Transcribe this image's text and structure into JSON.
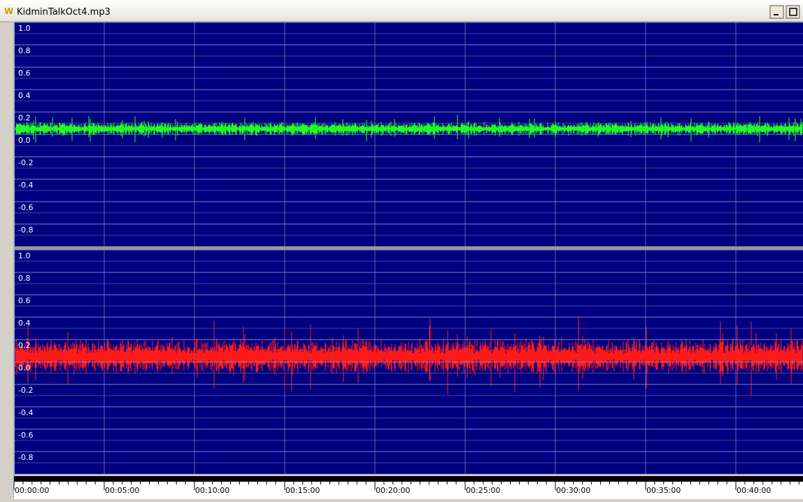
{
  "window": {
    "title": "KidminTalkOct4.mp3"
  },
  "channels": [
    {
      "color": "#22ff22",
      "ylim": [
        -1,
        1
      ],
      "yticks": [
        {
          "value": 1,
          "label": "1.0"
        },
        {
          "value": 0.8,
          "label": "0.8"
        },
        {
          "value": 0.6,
          "label": "0.6"
        },
        {
          "value": 0.4,
          "label": "0.4"
        },
        {
          "value": 0.2,
          "label": "0.2"
        },
        {
          "value": 0,
          "label": "0.0"
        },
        {
          "value": -0.2,
          "label": "-0.2"
        },
        {
          "value": -0.4,
          "label": "-0.4"
        },
        {
          "value": -0.6,
          "label": "-0.6"
        },
        {
          "value": -0.8,
          "label": "-0.8"
        }
      ]
    },
    {
      "color": "#ff1a1a",
      "ylim": [
        -1,
        1
      ],
      "yticks": [
        {
          "value": 1,
          "label": "1.0"
        },
        {
          "value": 0.8,
          "label": "0.8"
        },
        {
          "value": 0.6,
          "label": "0.6"
        },
        {
          "value": 0.4,
          "label": "0.4"
        },
        {
          "value": 0.2,
          "label": "0.2"
        },
        {
          "value": 0,
          "label": "0.0"
        },
        {
          "value": -0.2,
          "label": "-0.2"
        },
        {
          "value": -0.4,
          "label": "-0.4"
        },
        {
          "value": -0.6,
          "label": "-0.6"
        },
        {
          "value": -0.8,
          "label": "-0.8"
        }
      ]
    }
  ],
  "timeline": {
    "labels": [
      "00:00:00",
      "00:05:00",
      "00:10:00",
      "00:15:00",
      "00:20:00",
      "00:25:00",
      "00:30:00",
      "00:35:00",
      "00:40:00"
    ]
  }
}
